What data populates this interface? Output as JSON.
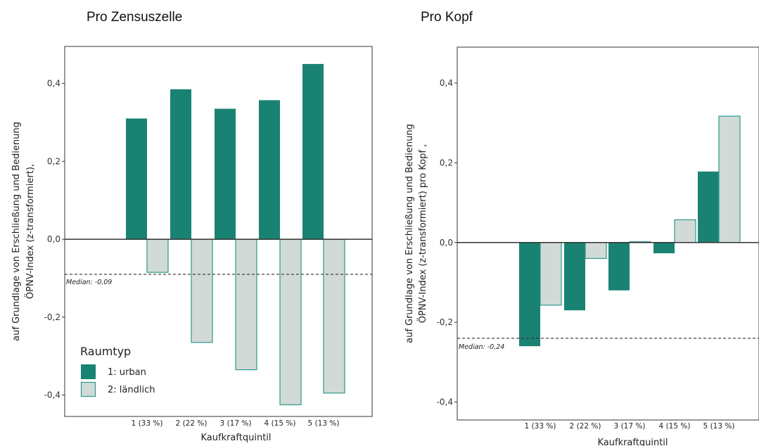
{
  "colors": {
    "urban": "#1a8272",
    "laendlich": "#d1dad7",
    "laendlich_stroke": "#2a9a88",
    "zero_line": "#333333",
    "frame": "#333333"
  },
  "chart_data": [
    {
      "type": "bar",
      "title": "Pro Zensuszelle",
      "xlabel": "Kaufkraftquintil",
      "ylabel": [
        "ÖPNV-Index (z-transformiert),",
        "auf Grundlage von Erschließung und Bedienung"
      ],
      "categories": [
        "1 (33 %)",
        "2 (22 %)",
        "3 (17 %)",
        "4 (15 %)",
        "5 (13 %)"
      ],
      "series": [
        {
          "name": "1: urban",
          "values": [
            0.31,
            0.385,
            0.335,
            0.357,
            0.45
          ]
        },
        {
          "name": "2: ländlich",
          "values": [
            -0.085,
            -0.265,
            -0.335,
            -0.425,
            -0.395
          ]
        }
      ],
      "ylim": [
        -0.455,
        0.495
      ],
      "yticks": [
        -0.4,
        -0.2,
        0.0,
        0.2,
        0.4
      ],
      "ytick_labels": [
        "-0,4",
        "-0,2",
        "0,0",
        "0,2",
        "0,4"
      ],
      "median": {
        "value": -0.09,
        "label": "Median: -0,09"
      },
      "legend": {
        "title": "Raumtyp",
        "position": "bottom-left",
        "entries": [
          "1: urban",
          "2: ländlich"
        ]
      },
      "grid": false
    },
    {
      "type": "bar",
      "title": "Pro Kopf",
      "xlabel": "Kaufkraftquintil",
      "ylabel": [
        "ÖPNV-Index (z-transformiert) pro Kopf ,",
        "auf Grundlage von Erschließung und Bedienung"
      ],
      "categories": [
        "1 (33 %)",
        "2 (22 %)",
        "3 (17 %)",
        "4 (15 %)",
        "5 (13 %)"
      ],
      "series": [
        {
          "name": "1: urban",
          "values": [
            -0.26,
            -0.17,
            -0.12,
            -0.027,
            0.178
          ]
        },
        {
          "name": "2: ländlich",
          "values": [
            -0.157,
            -0.04,
            0.002,
            0.057,
            0.317
          ]
        }
      ],
      "ylim": [
        -0.445,
        0.49
      ],
      "yticks": [
        -0.4,
        -0.2,
        0.0,
        0.2,
        0.4
      ],
      "ytick_labels": [
        "-0,4",
        "-0,2",
        "0,0",
        "0,2",
        "0,4"
      ],
      "median": {
        "value": -0.24,
        "label": "Median: -0,24"
      },
      "grid": false
    }
  ]
}
